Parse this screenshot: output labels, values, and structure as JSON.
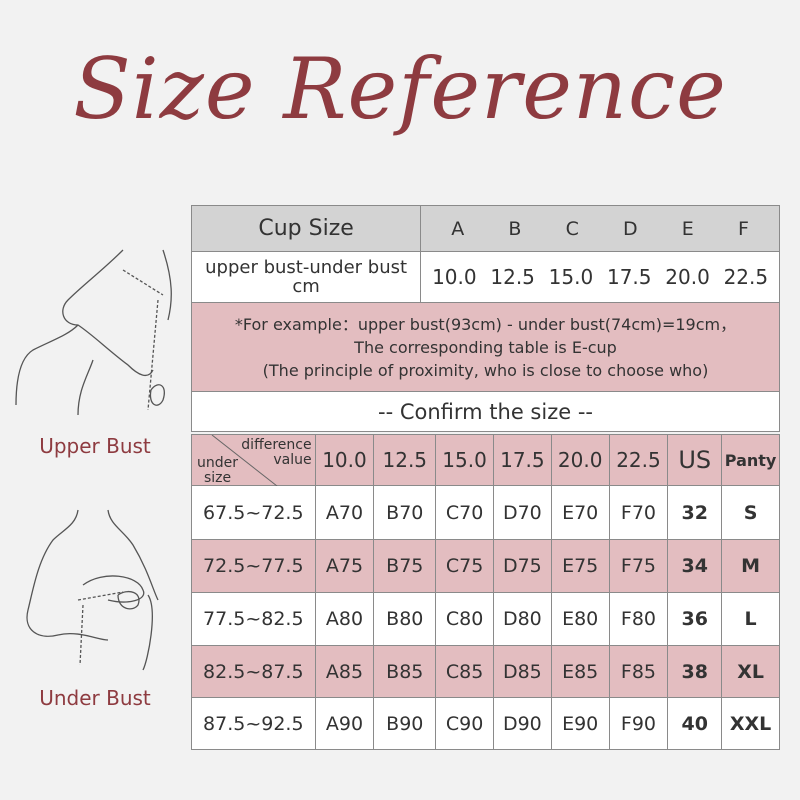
{
  "title": "Size Reference",
  "figures": [
    {
      "label": "Upper Bust"
    },
    {
      "label": "Under Bust"
    }
  ],
  "cup_table": {
    "header_label": "Cup Size",
    "cups": [
      "A",
      "B",
      "C",
      "D",
      "E",
      "F"
    ],
    "diff_label_line1": "upper bust-under bust",
    "diff_label_line2": "cm",
    "diffs": [
      "10.0",
      "12.5",
      "15.0",
      "17.5",
      "20.0",
      "22.5"
    ]
  },
  "note": {
    "line1": "*For example：upper bust(93cm) - under bust(74cm)=19cm，",
    "line2": "The corresponding table is E-cup",
    "line3": "(The principle of proximity, who is close to choose who)"
  },
  "confirm_label": "-- Confirm the size --",
  "size_table": {
    "corner_top1": "difference",
    "corner_top2": "value",
    "corner_bottom1": "under",
    "corner_bottom2": "size",
    "headers": [
      "10.0",
      "12.5",
      "15.0",
      "17.5",
      "20.0",
      "22.5",
      "US",
      "Panty"
    ],
    "rows": [
      [
        "67.5~72.5",
        "A70",
        "B70",
        "C70",
        "D70",
        "E70",
        "F70",
        "32",
        "S"
      ],
      [
        "72.5~77.5",
        "A75",
        "B75",
        "C75",
        "D75",
        "E75",
        "F75",
        "34",
        "M"
      ],
      [
        "77.5~82.5",
        "A80",
        "B80",
        "C80",
        "D80",
        "E80",
        "F80",
        "36",
        "L"
      ],
      [
        "82.5~87.5",
        "A85",
        "B85",
        "C85",
        "D85",
        "E85",
        "F85",
        "38",
        "XL"
      ],
      [
        "87.5~92.5",
        "A90",
        "B90",
        "C90",
        "D90",
        "E90",
        "F90",
        "40",
        "XXL"
      ]
    ]
  },
  "colors": {
    "accent": "#8e3b40",
    "pink": "#e3bdc0",
    "gray": "#d3d3d3",
    "background": "#f2f2f2"
  }
}
